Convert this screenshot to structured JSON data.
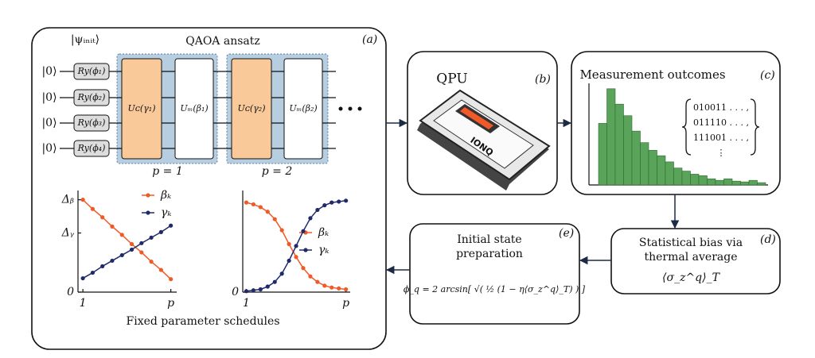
{
  "panel_a": {
    "label": "(a)",
    "init_state": "|ψᵢₙᵢₜ⟩",
    "title": "QAOA ansatz",
    "qubits": [
      "|0⟩",
      "|0⟩",
      "|0⟩",
      "|0⟩"
    ],
    "rotations": [
      "Ry(ϕ₁)",
      "Ry(ϕ₂)",
      "Ry(ϕ₃)",
      "Ry(ϕ₄)"
    ],
    "layers": [
      {
        "cost": "Uᴄ(γ₁)",
        "mixer": "Uₘ(β₁)",
        "label": "p = 1"
      },
      {
        "cost": "Uᴄ(γ₂)",
        "mixer": "Uₘ(β₂)",
        "label": "p = 2"
      }
    ],
    "caption": "Fixed parameter schedules",
    "charts": [
      {
        "type": "line",
        "x": [
          1,
          2,
          3,
          4,
          5,
          6,
          7,
          8,
          9,
          10
        ],
        "xlim": [
          0.5,
          10.6
        ],
        "xticks": [
          {
            "value": 1,
            "label": "1"
          },
          {
            "value": 10,
            "label": "p"
          }
        ],
        "ylim": [
          0,
          1.1
        ],
        "yticks": [
          {
            "value": 1,
            "label": "Δᵦ"
          },
          {
            "value": 0.64,
            "label": "Δᵧ"
          },
          0
        ],
        "series": [
          {
            "name": "βₖ",
            "color": "#f05a28",
            "values": [
              1.0,
              0.9,
              0.81,
              0.71,
              0.62,
              0.52,
              0.43,
              0.33,
              0.24,
              0.14
            ]
          },
          {
            "name": "γₖ",
            "color": "#1f2a6b",
            "values": [
              0.15,
              0.21,
              0.28,
              0.34,
              0.4,
              0.46,
              0.53,
              0.59,
              0.65,
              0.72
            ]
          }
        ]
      },
      {
        "type": "line",
        "x": [
          1,
          2,
          3,
          4,
          5,
          6,
          7,
          8,
          9,
          10,
          11,
          12,
          13,
          14,
          15
        ],
        "xlim": [
          0.5,
          15.6
        ],
        "xticks": [
          {
            "value": 1,
            "label": "1"
          },
          {
            "value": 15,
            "label": "p"
          }
        ],
        "ylim": [
          0,
          1.1
        ],
        "yticks": [
          0
        ],
        "series": [
          {
            "name": "βₖ",
            "color": "#f05a28",
            "values": [
              0.97,
              0.95,
              0.92,
              0.87,
              0.79,
              0.67,
              0.52,
              0.38,
              0.26,
              0.17,
              0.11,
              0.07,
              0.05,
              0.04,
              0.03
            ]
          },
          {
            "name": "γₖ",
            "color": "#1f2a6b",
            "values": [
              0.01,
              0.02,
              0.03,
              0.06,
              0.11,
              0.2,
              0.34,
              0.5,
              0.66,
              0.8,
              0.89,
              0.94,
              0.97,
              0.98,
              0.99
            ]
          }
        ]
      }
    ]
  },
  "panel_b": {
    "label": "(b)",
    "title": "QPU",
    "chip_text": "IONQ"
  },
  "panel_c": {
    "label": "(c)",
    "title": "Measurement outcomes",
    "histogram": {
      "type": "bar",
      "values": [
        80,
        125,
        105,
        90,
        70,
        55,
        45,
        38,
        30,
        22,
        18,
        14,
        12,
        8,
        6,
        8,
        5,
        4,
        6,
        3
      ],
      "ylim": [
        0,
        132
      ],
      "color": "#5aa35a"
    },
    "bitstrings": [
      "010011 . . . ,",
      "011110 . . . ,",
      "111001 . . . ,",
      "⋮"
    ]
  },
  "panel_d": {
    "label": "(d)",
    "lines": [
      "Statistical bias via",
      "thermal average"
    ],
    "formula": "⟨σ_z^q⟩_T"
  },
  "panel_e": {
    "label": "(e)",
    "lines": [
      "Initial state",
      "preparation"
    ],
    "formula": "ϕ_q = 2 arcsin[ √( ½ (1 − η⟨σ_z^q⟩_T) ) ]"
  }
}
